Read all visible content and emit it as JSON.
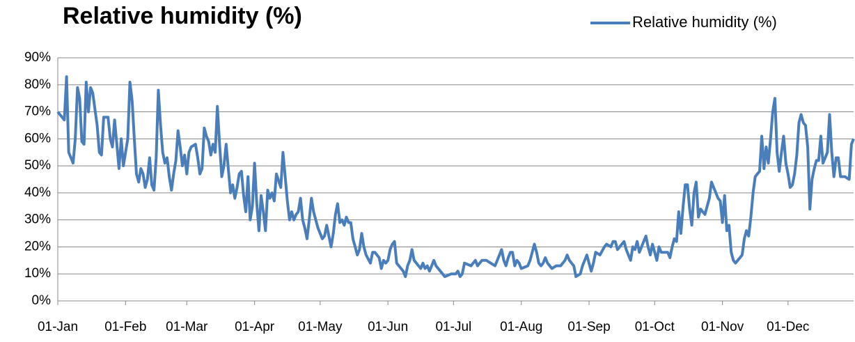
{
  "chart_data": {
    "type": "line",
    "title": "Relative humidity (%)",
    "legend": "top-right",
    "grid": true,
    "xlim": [
      0,
      364
    ],
    "xticks": [
      {
        "value": 0,
        "label": "01-Jan"
      },
      {
        "value": 31,
        "label": "01-Feb"
      },
      {
        "value": 59,
        "label": "01-Mar"
      },
      {
        "value": 90,
        "label": "01-Apr"
      },
      {
        "value": 120,
        "label": "01-May"
      },
      {
        "value": 151,
        "label": "01-Jun"
      },
      {
        "value": 181,
        "label": "01-Jul"
      },
      {
        "value": 212,
        "label": "01-Aug"
      },
      {
        "value": 243,
        "label": "01-Sep"
      },
      {
        "value": 273,
        "label": "01-Oct"
      },
      {
        "value": 304,
        "label": "01-Nov"
      },
      {
        "value": 334,
        "label": "01-Dec"
      }
    ],
    "ylim": [
      0,
      90
    ],
    "yticks": [
      {
        "value": 0,
        "label": "0%"
      },
      {
        "value": 10,
        "label": "10%"
      },
      {
        "value": 20,
        "label": "20%"
      },
      {
        "value": 30,
        "label": "30%"
      },
      {
        "value": 40,
        "label": "40%"
      },
      {
        "value": 50,
        "label": "50%"
      },
      {
        "value": 60,
        "label": "60%"
      },
      {
        "value": 70,
        "label": "70%"
      },
      {
        "value": 80,
        "label": "80%"
      },
      {
        "value": 90,
        "label": "90%"
      }
    ],
    "x": [
      0,
      3,
      4,
      5,
      7,
      8,
      9,
      10,
      11,
      12,
      13,
      14,
      15,
      16,
      18,
      19,
      20,
      21,
      23,
      24,
      25,
      26,
      27,
      28,
      29,
      30,
      32,
      33,
      34,
      35,
      36,
      37,
      38,
      39,
      40,
      41,
      42,
      43,
      44,
      45,
      46,
      47,
      48,
      49,
      50,
      51,
      52,
      53,
      54,
      55,
      56,
      57,
      58,
      59,
      60,
      61,
      63,
      64,
      65,
      66,
      67,
      68,
      69,
      70,
      71,
      72,
      73,
      74,
      75,
      76,
      77,
      78,
      79,
      80,
      81,
      82,
      83,
      84,
      85,
      86,
      87,
      88,
      89,
      90,
      91,
      92,
      93,
      94,
      95,
      96,
      97,
      98,
      99,
      100,
      102,
      103,
      104,
      105,
      106,
      107,
      108,
      109,
      110,
      111,
      112,
      113,
      114,
      115,
      116,
      117,
      118,
      119,
      120,
      121,
      122,
      123,
      124,
      125,
      126,
      127,
      128,
      129,
      130,
      131,
      132,
      133,
      134,
      135,
      136,
      137,
      138,
      139,
      140,
      141,
      143,
      144,
      145,
      146,
      147,
      148,
      149,
      150,
      151,
      152,
      153,
      154,
      155,
      156,
      157,
      158,
      159,
      160,
      161,
      162,
      163,
      165,
      166,
      167,
      168,
      169,
      170,
      171,
      172,
      173,
      175,
      177,
      180,
      182,
      183,
      184,
      185,
      186,
      189,
      190,
      191,
      192,
      193,
      194,
      196,
      198,
      200,
      201,
      202,
      203,
      204,
      205,
      206,
      207,
      208,
      209,
      210,
      211,
      212,
      215,
      216,
      218,
      219,
      220,
      221,
      222,
      223,
      224,
      225,
      226,
      228,
      230,
      232,
      233,
      234,
      235,
      236,
      237,
      239,
      240,
      242,
      243,
      244,
      245,
      246,
      248,
      250,
      251,
      253,
      254,
      255,
      256,
      258,
      259,
      260,
      261,
      262,
      263,
      264,
      265,
      266,
      267,
      268,
      269,
      270,
      271,
      272,
      273,
      274,
      275,
      276,
      279,
      280,
      281,
      282,
      283,
      284,
      285,
      286,
      287,
      288,
      289,
      290,
      291,
      292,
      293,
      294,
      296,
      297,
      298,
      299,
      300,
      301,
      302,
      303,
      304,
      305,
      306,
      307,
      308,
      309,
      310,
      311,
      313,
      314,
      315,
      316,
      317,
      318,
      319,
      320,
      321,
      322,
      323,
      324,
      325,
      326,
      327,
      328,
      329,
      330,
      331,
      332,
      333,
      334,
      335,
      336,
      337,
      338,
      339,
      340,
      341,
      342,
      343,
      344,
      345,
      346,
      347,
      348,
      349,
      350,
      351,
      352,
      353,
      354,
      355,
      356,
      357,
      358,
      360,
      362,
      363,
      364
    ],
    "series": [
      {
        "name": "Relative humidity (%)",
        "color": "#4a7ebb",
        "values": [
          70,
          67,
          83,
          55,
          51,
          60,
          79,
          75,
          59,
          58,
          81,
          70,
          79,
          77,
          65,
          55,
          54,
          68,
          68,
          60,
          57,
          67,
          58,
          49,
          60,
          50,
          60,
          81,
          74,
          60,
          47,
          44,
          49,
          47,
          42,
          45,
          53,
          43,
          41,
          53,
          78,
          65,
          55,
          51,
          53,
          46,
          41,
          47,
          52,
          63,
          57,
          50,
          54,
          47,
          55,
          57,
          58,
          53,
          47,
          49,
          64,
          61,
          59,
          54,
          58,
          55,
          72,
          58,
          46,
          50,
          58,
          49,
          40,
          43,
          38,
          42,
          47,
          48,
          39,
          33,
          46,
          30,
          35,
          51,
          36,
          26,
          39,
          33,
          26,
          41,
          38,
          40,
          37,
          47,
          42,
          55,
          46,
          37,
          30,
          33,
          30,
          32,
          33,
          38,
          30,
          27,
          23,
          30,
          38,
          33,
          30,
          27,
          25,
          23,
          24,
          28,
          24,
          20,
          25,
          32,
          36,
          29,
          30,
          28,
          31,
          29,
          29,
          23,
          20,
          17,
          19,
          25,
          20,
          17,
          14,
          18,
          18,
          17,
          16,
          12,
          15,
          14,
          15,
          19,
          21,
          22,
          14,
          13,
          12,
          11,
          9,
          13,
          15,
          19,
          15,
          13,
          12,
          14,
          12,
          13,
          11,
          13,
          15,
          13,
          11,
          9,
          10,
          10,
          11,
          9,
          10,
          14,
          13,
          14,
          15,
          13,
          14,
          15,
          15,
          14,
          13,
          15,
          17,
          19,
          15,
          13,
          16,
          18,
          18,
          13,
          15,
          14,
          12,
          13,
          15,
          21,
          18,
          14,
          13,
          14,
          16,
          14,
          13,
          12,
          13,
          13,
          15,
          17,
          15,
          14,
          13,
          9,
          10,
          13,
          17,
          14,
          11,
          14,
          18,
          17,
          20,
          21,
          20,
          22,
          22,
          19,
          21,
          22,
          19,
          17,
          15,
          20,
          19,
          22,
          18,
          20,
          22,
          24,
          20,
          17,
          21,
          18,
          15,
          20,
          18,
          18,
          16,
          20,
          23,
          22,
          33,
          25,
          35,
          43,
          43,
          34,
          28,
          40,
          44,
          31,
          34,
          32,
          35,
          38,
          44,
          42,
          40,
          38,
          37,
          29,
          39,
          26,
          28,
          18,
          15,
          14,
          15,
          17,
          23,
          26,
          24,
          31,
          40,
          46,
          47,
          48,
          61,
          49,
          57,
          51,
          60,
          70,
          75,
          55,
          48,
          55,
          61,
          51,
          47,
          42,
          43,
          47,
          54,
          66,
          69,
          66,
          65,
          57,
          34,
          45,
          49,
          52,
          52,
          61,
          51,
          53,
          55,
          69,
          55,
          46,
          53,
          53,
          46,
          46,
          45,
          58,
          60
        ]
      }
    ]
  }
}
